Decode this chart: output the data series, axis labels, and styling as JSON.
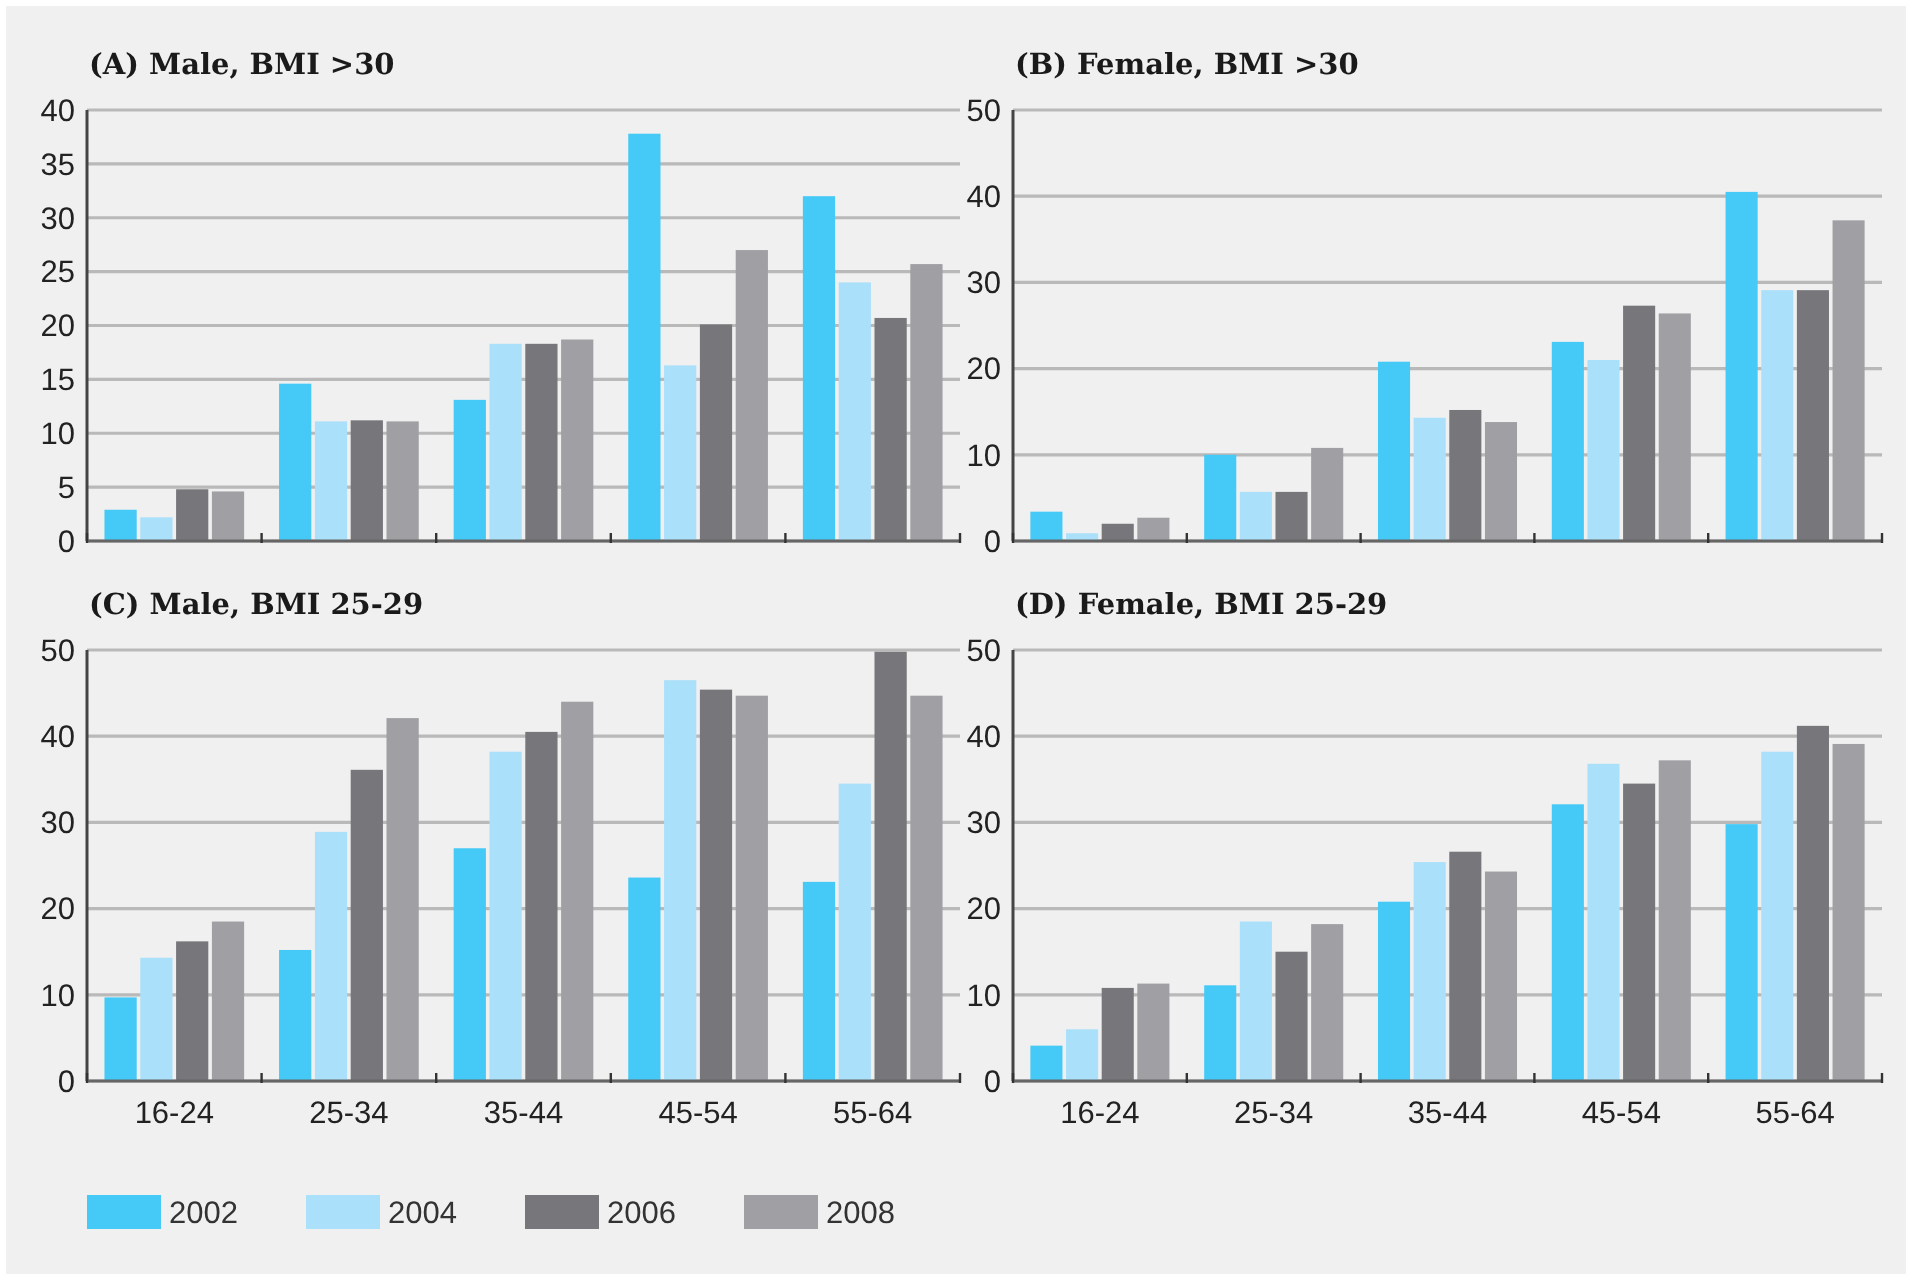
{
  "chart_data": [
    {
      "type": "bar",
      "title": "(A) Male, BMI >30",
      "categories": [
        null,
        null,
        null,
        null,
        null
      ],
      "series": [
        {
          "color": "#45c9f6",
          "values": [
            2.9,
            14.6,
            13.1,
            37.8,
            32.0
          ]
        },
        {
          "color": "#abe0fa",
          "values": [
            2.2,
            11.1,
            18.3,
            16.3,
            24.0
          ]
        },
        {
          "color": "#77777b",
          "values": [
            4.8,
            11.2,
            18.3,
            20.1,
            20.7
          ]
        },
        {
          "color": "#a0a0a4",
          "values": [
            4.6,
            11.1,
            18.7,
            27.0,
            25.7
          ]
        }
      ],
      "ylim": [
        0,
        40
      ],
      "yticks": [
        0,
        5,
        10,
        15,
        20,
        25,
        30,
        35,
        40
      ],
      "grid": "y"
    },
    {
      "type": "bar",
      "title": "(B) Female, BMI >30",
      "categories": [
        null,
        null,
        null,
        null,
        null
      ],
      "series": [
        {
          "color": "#45c9f6",
          "values": [
            3.4,
            10.0,
            20.8,
            23.1,
            40.5
          ]
        },
        {
          "color": "#abe0fa",
          "values": [
            0.9,
            5.7,
            14.3,
            21.0,
            29.1
          ]
        },
        {
          "color": "#77777b",
          "values": [
            2.0,
            5.7,
            15.2,
            27.3,
            29.1
          ]
        },
        {
          "color": "#a0a0a4",
          "values": [
            2.7,
            10.8,
            13.8,
            26.4,
            37.2
          ]
        }
      ],
      "ylim": [
        0,
        50
      ],
      "yticks": [
        0,
        10,
        20,
        30,
        40,
        50
      ],
      "grid": "y"
    },
    {
      "type": "bar",
      "title": "(C) Male, BMI 25-29",
      "categories": [
        "16-24",
        "25-34",
        "35-44",
        "45-54",
        "55-64"
      ],
      "series": [
        {
          "name": "2002",
          "color": "#45c9f6",
          "values": [
            9.7,
            15.2,
            27.0,
            23.6,
            23.1
          ]
        },
        {
          "name": "2004",
          "color": "#abe0fa",
          "values": [
            14.3,
            28.9,
            38.2,
            46.5,
            34.5
          ]
        },
        {
          "name": "2006",
          "color": "#77777b",
          "values": [
            16.2,
            36.1,
            40.5,
            45.4,
            49.8
          ]
        },
        {
          "name": "2008",
          "color": "#a0a0a4",
          "values": [
            18.5,
            42.1,
            44.0,
            44.7,
            44.7
          ]
        }
      ],
      "ylim": [
        0,
        50
      ],
      "yticks": [
        0,
        10,
        20,
        30,
        40,
        50
      ],
      "grid": "y",
      "legend": "bottom"
    },
    {
      "type": "bar",
      "title": "(D) Female, BMI 25-29",
      "categories": [
        "16-24",
        "25-34",
        "35-44",
        "45-54",
        "55-64"
      ],
      "series": [
        {
          "color": "#45c9f6",
          "values": [
            4.1,
            11.1,
            20.8,
            32.1,
            29.8
          ]
        },
        {
          "color": "#abe0fa",
          "values": [
            6.0,
            18.5,
            25.4,
            36.8,
            38.2
          ]
        },
        {
          "color": "#77777b",
          "values": [
            10.8,
            15.0,
            26.6,
            34.5,
            41.2
          ]
        },
        {
          "color": "#a0a0a4",
          "values": [
            11.3,
            18.2,
            24.3,
            37.2,
            39.1
          ]
        }
      ],
      "ylim": [
        0,
        50
      ],
      "yticks": [
        0,
        10,
        20,
        30,
        40,
        50
      ],
      "grid": "y"
    }
  ]
}
